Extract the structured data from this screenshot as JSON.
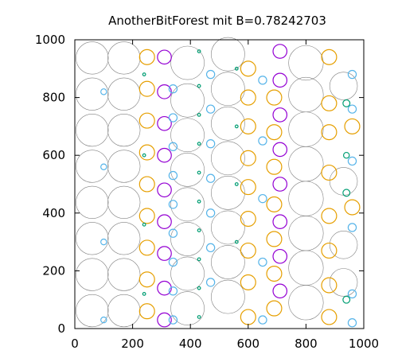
{
  "chart_data": {
    "type": "scatter",
    "title": "AnotherBitForest mit B=0.78242703",
    "xlabel": "",
    "ylabel": "",
    "xlim": [
      0,
      1000
    ],
    "ylim": [
      0,
      1000
    ],
    "x_ticks": [
      0,
      200,
      400,
      600,
      800,
      1000
    ],
    "y_ticks": [
      0,
      200,
      400,
      600,
      800,
      1000
    ],
    "grid": false,
    "colors": {
      "large": "#808080",
      "orange": "#e69f00",
      "purple": "#9400d3",
      "cyan": "#56b4e9",
      "teal": "#009e73",
      "frame": "#000000"
    },
    "circles": {
      "large": [
        [
          60,
          62,
          56
        ],
        [
          60,
          187,
          56
        ],
        [
          60,
          312,
          56
        ],
        [
          60,
          437,
          56
        ],
        [
          60,
          562,
          56
        ],
        [
          60,
          687,
          56
        ],
        [
          60,
          812,
          56
        ],
        [
          60,
          937,
          56
        ],
        [
          170,
          62,
          56
        ],
        [
          170,
          187,
          56
        ],
        [
          170,
          312,
          56
        ],
        [
          170,
          437,
          56
        ],
        [
          170,
          562,
          56
        ],
        [
          170,
          687,
          56
        ],
        [
          170,
          812,
          56
        ],
        [
          170,
          937,
          56
        ],
        [
          390,
          70,
          58
        ],
        [
          390,
          190,
          58
        ],
        [
          390,
          310,
          58
        ],
        [
          390,
          430,
          58
        ],
        [
          390,
          550,
          58
        ],
        [
          390,
          670,
          58
        ],
        [
          390,
          790,
          58
        ],
        [
          390,
          920,
          58
        ],
        [
          530,
          110,
          58
        ],
        [
          530,
          230,
          58
        ],
        [
          530,
          350,
          58
        ],
        [
          530,
          470,
          58
        ],
        [
          530,
          590,
          58
        ],
        [
          530,
          710,
          58
        ],
        [
          530,
          830,
          58
        ],
        [
          530,
          950,
          58
        ],
        [
          800,
          90,
          60
        ],
        [
          800,
          210,
          60
        ],
        [
          800,
          330,
          60
        ],
        [
          800,
          450,
          60
        ],
        [
          800,
          570,
          60
        ],
        [
          800,
          690,
          60
        ],
        [
          800,
          810,
          60
        ],
        [
          800,
          920,
          60
        ],
        [
          930,
          160,
          48
        ],
        [
          930,
          290,
          48
        ],
        [
          930,
          510,
          48
        ],
        [
          930,
          840,
          48
        ]
      ],
      "orange": [
        [
          250,
          60,
          26
        ],
        [
          250,
          170,
          26
        ],
        [
          250,
          280,
          26
        ],
        [
          250,
          390,
          26
        ],
        [
          250,
          500,
          26
        ],
        [
          250,
          610,
          26
        ],
        [
          250,
          720,
          26
        ],
        [
          250,
          830,
          26
        ],
        [
          250,
          940,
          26
        ],
        [
          600,
          40,
          26
        ],
        [
          600,
          160,
          26
        ],
        [
          600,
          270,
          26
        ],
        [
          600,
          380,
          26
        ],
        [
          600,
          490,
          26
        ],
        [
          600,
          590,
          26
        ],
        [
          600,
          700,
          26
        ],
        [
          600,
          800,
          26
        ],
        [
          600,
          900,
          26
        ],
        [
          690,
          70,
          26
        ],
        [
          690,
          190,
          26
        ],
        [
          690,
          310,
          26
        ],
        [
          690,
          430,
          26
        ],
        [
          690,
          560,
          26
        ],
        [
          690,
          680,
          26
        ],
        [
          690,
          800,
          26
        ],
        [
          880,
          40,
          26
        ],
        [
          880,
          150,
          26
        ],
        [
          880,
          270,
          26
        ],
        [
          880,
          390,
          26
        ],
        [
          880,
          540,
          26
        ],
        [
          880,
          680,
          26
        ],
        [
          880,
          780,
          26
        ],
        [
          880,
          940,
          26
        ],
        [
          960,
          420,
          26
        ],
        [
          960,
          700,
          26
        ]
      ],
      "purple": [
        [
          310,
          30,
          24
        ],
        [
          310,
          140,
          24
        ],
        [
          310,
          260,
          24
        ],
        [
          310,
          370,
          24
        ],
        [
          310,
          480,
          24
        ],
        [
          310,
          600,
          24
        ],
        [
          310,
          710,
          24
        ],
        [
          310,
          820,
          24
        ],
        [
          310,
          940,
          24
        ],
        [
          710,
          130,
          24
        ],
        [
          710,
          250,
          24
        ],
        [
          710,
          370,
          24
        ],
        [
          710,
          500,
          24
        ],
        [
          710,
          620,
          24
        ],
        [
          710,
          740,
          24
        ],
        [
          710,
          860,
          24
        ],
        [
          710,
          960,
          24
        ]
      ],
      "cyan": [
        [
          340,
          30,
          14
        ],
        [
          340,
          130,
          14
        ],
        [
          340,
          230,
          14
        ],
        [
          340,
          330,
          14
        ],
        [
          340,
          430,
          14
        ],
        [
          340,
          530,
          14
        ],
        [
          340,
          630,
          14
        ],
        [
          340,
          730,
          14
        ],
        [
          340,
          830,
          14
        ],
        [
          470,
          160,
          14
        ],
        [
          470,
          280,
          14
        ],
        [
          470,
          400,
          14
        ],
        [
          470,
          520,
          14
        ],
        [
          470,
          640,
          14
        ],
        [
          470,
          760,
          14
        ],
        [
          470,
          880,
          14
        ],
        [
          650,
          30,
          14
        ],
        [
          650,
          230,
          14
        ],
        [
          650,
          450,
          14
        ],
        [
          650,
          650,
          14
        ],
        [
          650,
          860,
          14
        ],
        [
          960,
          20,
          14
        ],
        [
          960,
          120,
          14
        ],
        [
          960,
          350,
          14
        ],
        [
          960,
          580,
          14
        ],
        [
          960,
          760,
          14
        ],
        [
          960,
          880,
          14
        ],
        [
          100,
          30,
          10
        ],
        [
          100,
          300,
          10
        ],
        [
          100,
          560,
          10
        ],
        [
          100,
          820,
          10
        ]
      ],
      "teal": [
        [
          430,
          40,
          5
        ],
        [
          430,
          140,
          5
        ],
        [
          430,
          240,
          5
        ],
        [
          430,
          340,
          5
        ],
        [
          430,
          440,
          5
        ],
        [
          430,
          540,
          5
        ],
        [
          430,
          640,
          5
        ],
        [
          430,
          740,
          5
        ],
        [
          430,
          840,
          5
        ],
        [
          430,
          960,
          5
        ],
        [
          560,
          300,
          5
        ],
        [
          560,
          500,
          5
        ],
        [
          560,
          700,
          5
        ],
        [
          560,
          900,
          5
        ],
        [
          240,
          120,
          5
        ],
        [
          240,
          360,
          5
        ],
        [
          240,
          600,
          5
        ],
        [
          240,
          880,
          5
        ],
        [
          940,
          100,
          12
        ],
        [
          940,
          470,
          12
        ],
        [
          940,
          780,
          12
        ],
        [
          940,
          600,
          10
        ]
      ]
    }
  }
}
